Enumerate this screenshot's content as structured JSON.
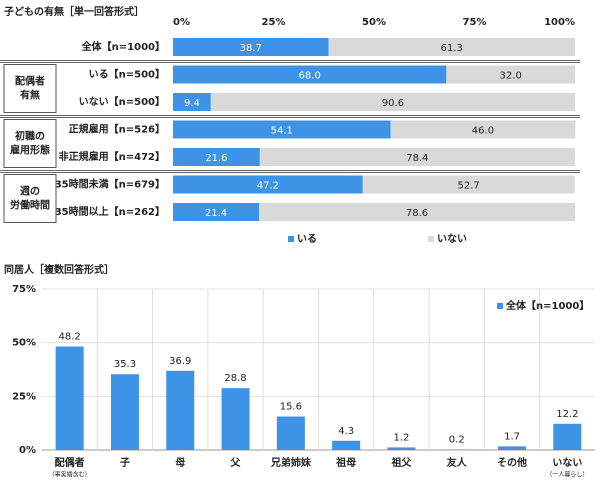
{
  "chart_data": [
    {
      "type": "hstack",
      "title": "子どもの有無［単一回答形式］",
      "groups": [
        {
          "categories": [
            "全体【n=1000】"
          ]
        },
        {
          "name": [
            "配偶者",
            "有無"
          ],
          "categories": [
            "いる【n=500】",
            "いない【n=500】"
          ]
        },
        {
          "name": [
            "初職の",
            "雇用形態"
          ],
          "categories": [
            "正規雇用【n=526】",
            "非正規雇用【n=472】"
          ]
        },
        {
          "name": [
            "週の",
            "労働時間"
          ],
          "categories": [
            "35時間未満【n=679】",
            "35時間以上【n=262】"
          ]
        }
      ],
      "series": [
        {
          "name": "いる",
          "color": "#3d93e6",
          "values": [
            38.7,
            68.0,
            9.4,
            54.1,
            21.6,
            47.2,
            21.4
          ],
          "value_labels": [
            "38.7",
            "68.0",
            "9.4",
            "54.1",
            "21.6",
            "47.2",
            "21.4"
          ]
        },
        {
          "name": "いない",
          "color": "#d9d9d9",
          "values": [
            61.3,
            32.0,
            90.6,
            46.0,
            78.4,
            52.7,
            78.6
          ],
          "value_labels": [
            "61.3",
            "32.0",
            "90.6",
            "46.0",
            "78.4",
            "52.7",
            "78.6"
          ]
        }
      ],
      "xlim": [
        0,
        100
      ],
      "xticks": [
        {
          "value": 0,
          "label": "0%"
        },
        {
          "value": 25,
          "label": "25%"
        },
        {
          "value": 50,
          "label": "50%"
        },
        {
          "value": 75,
          "label": "75%"
        },
        {
          "value": 100,
          "label": "100%"
        }
      ]
    },
    {
      "type": "bar",
      "title": "同居人［複数回答形式］",
      "categories": [
        "配偶者",
        "子",
        "母",
        "父",
        "兄弟姉妹",
        "祖母",
        "祖父",
        "友人",
        "その他",
        "いない"
      ],
      "subcategories": [
        "（事実婚含む）",
        null,
        null,
        null,
        null,
        null,
        null,
        null,
        null,
        "（一人暮らし）"
      ],
      "series": [
        {
          "name": "全体【n=1000】",
          "color": "#3d93e6",
          "values": [
            48.2,
            35.3,
            36.9,
            28.8,
            15.6,
            4.3,
            1.2,
            0.2,
            1.7,
            12.2
          ]
        }
      ],
      "ylim": [
        0,
        75
      ],
      "yticks": [
        {
          "value": 0,
          "label": "0%"
        },
        {
          "value": 25,
          "label": "25%"
        },
        {
          "value": 50,
          "label": "50%"
        },
        {
          "value": 75,
          "label": "75%"
        }
      ],
      "legend": "top-right"
    }
  ]
}
